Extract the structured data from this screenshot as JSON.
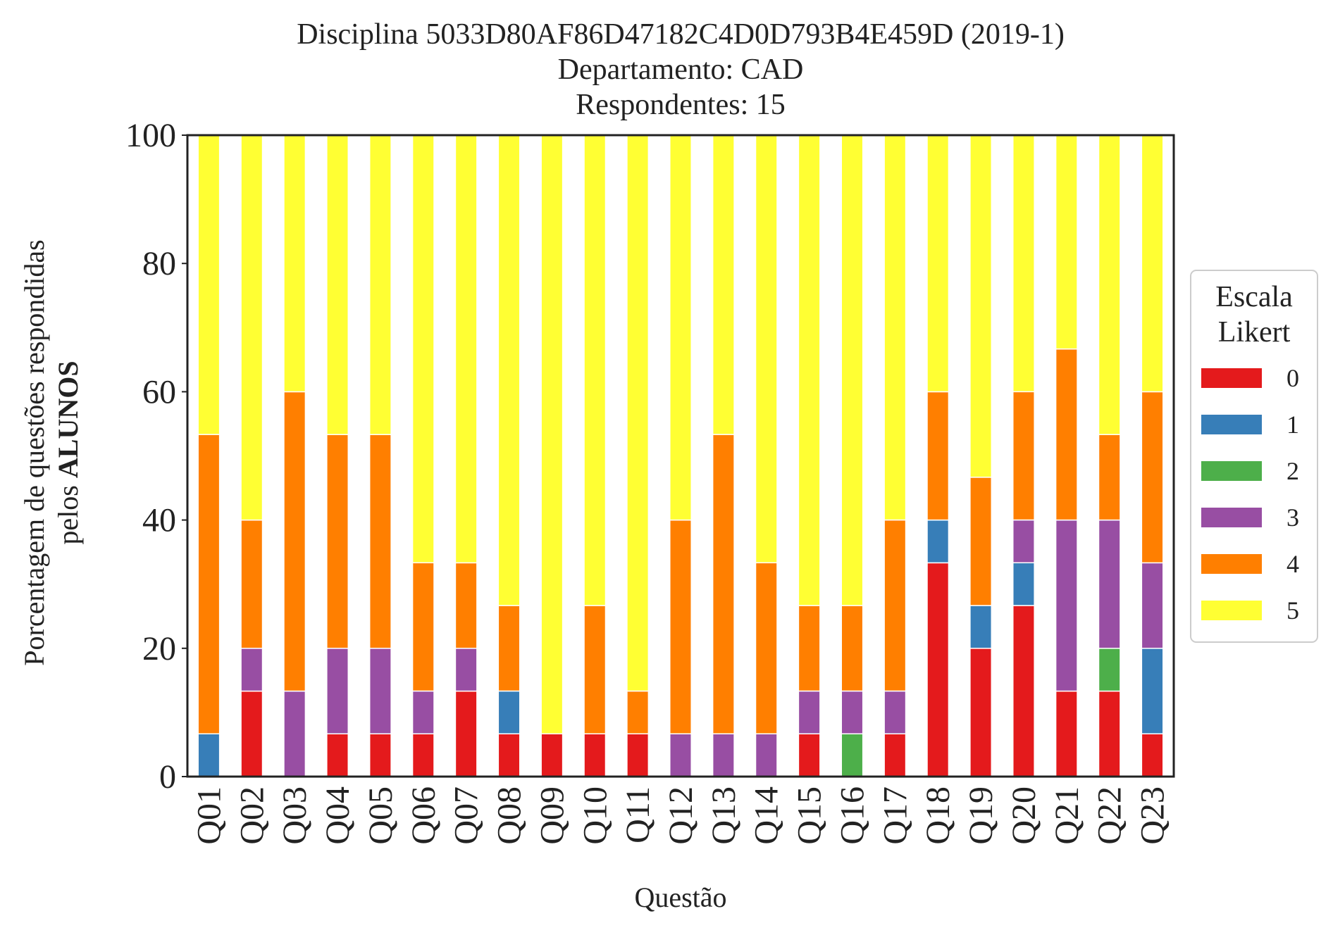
{
  "chart_data": {
    "type": "bar",
    "stacked": true,
    "title_lines": [
      "Disciplina 5033D80AF86D47182C4D0D793B4E459D (2019-1)",
      "Departamento: CAD",
      "Respondentes: 15"
    ],
    "xlabel": "Questão",
    "ylabel_line1": "Porcentagem de questões respondidas",
    "ylabel_line2_prefix": "pelos ",
    "ylabel_line2_bold": "ALUNOS",
    "ylim": [
      0,
      100
    ],
    "yticks": [
      "0",
      "20",
      "40",
      "60",
      "80",
      "100"
    ],
    "grid": false,
    "legend": {
      "title_lines": [
        "Escala",
        "Likert"
      ],
      "placement": "center-right, outside plot"
    },
    "categories": [
      "Q01",
      "Q02",
      "Q03",
      "Q04",
      "Q05",
      "Q06",
      "Q07",
      "Q08",
      "Q09",
      "Q10",
      "Q11",
      "Q12",
      "Q13",
      "Q14",
      "Q15",
      "Q16",
      "Q17",
      "Q18",
      "Q19",
      "Q20",
      "Q21",
      "Q22",
      "Q23"
    ],
    "series": [
      {
        "name": "0",
        "color": "#e41a1c",
        "values": [
          0,
          13.33,
          0,
          6.67,
          6.67,
          6.67,
          13.33,
          6.67,
          6.67,
          6.67,
          6.67,
          0,
          0,
          0,
          6.67,
          0,
          6.67,
          33.33,
          20,
          26.67,
          13.33,
          13.33,
          6.67
        ]
      },
      {
        "name": "1",
        "color": "#377eb8",
        "values": [
          6.67,
          0,
          0,
          0,
          0,
          0,
          0,
          6.67,
          0,
          0,
          0,
          0,
          0,
          0,
          0,
          0,
          0,
          6.67,
          6.67,
          6.67,
          0,
          0,
          13.33
        ]
      },
      {
        "name": "2",
        "color": "#4daf4a",
        "values": [
          0,
          0,
          0,
          0,
          0,
          0,
          0,
          0,
          0,
          0,
          0,
          0,
          0,
          0,
          0,
          6.67,
          0,
          0,
          0,
          0,
          0,
          6.67,
          0
        ]
      },
      {
        "name": "3",
        "color": "#984ea3",
        "values": [
          0,
          6.67,
          13.33,
          13.33,
          13.33,
          6.67,
          6.67,
          0,
          0,
          0,
          0,
          6.67,
          6.67,
          6.67,
          6.67,
          6.67,
          6.67,
          0,
          0,
          6.67,
          26.67,
          20,
          13.33
        ]
      },
      {
        "name": "4",
        "color": "#ff7f00",
        "values": [
          46.67,
          20,
          46.67,
          33.33,
          33.33,
          20,
          13.33,
          13.33,
          0,
          20,
          6.67,
          33.33,
          46.67,
          26.67,
          13.33,
          13.33,
          26.67,
          20,
          20,
          20,
          26.67,
          13.33,
          26.67
        ]
      },
      {
        "name": "5",
        "color": "#ffff33",
        "values": [
          46.67,
          60,
          40,
          46.67,
          46.67,
          66.67,
          66.67,
          73.33,
          93.33,
          73.33,
          86.67,
          60,
          46.67,
          66.67,
          73.33,
          73.33,
          60,
          40,
          53.33,
          40,
          33.33,
          46.67,
          40
        ]
      }
    ]
  }
}
